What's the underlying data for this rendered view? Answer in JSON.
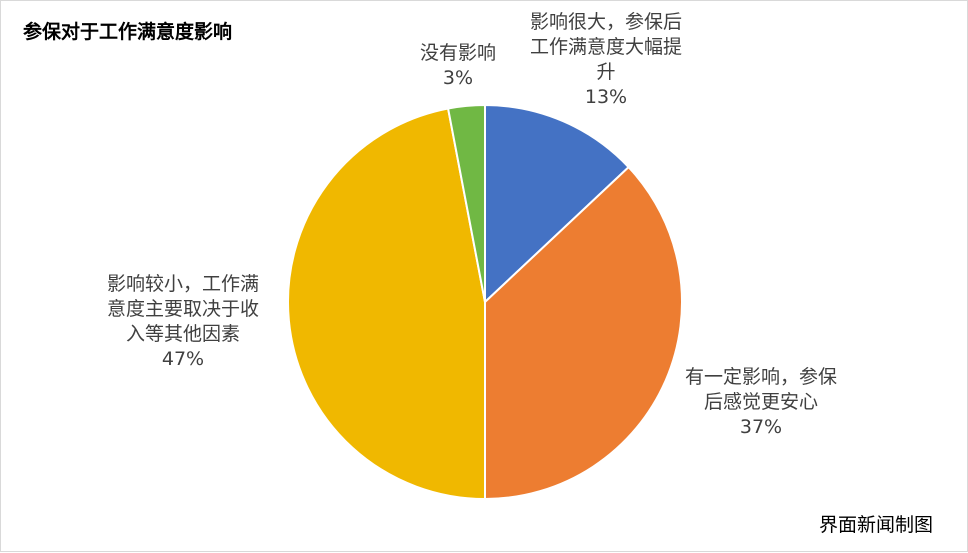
{
  "source_note": "界面新闻制图",
  "chart_data": {
    "type": "pie",
    "title": "参保对于工作满意度影响",
    "slices": [
      {
        "label_lines": [
          "影响很大，参保后",
          "工作满意度大幅提",
          "升"
        ],
        "value": 13,
        "value_label": "13%",
        "color": "#4472c4"
      },
      {
        "label_lines": [
          "有一定影响，参保",
          "后感觉更安心"
        ],
        "value": 37,
        "value_label": "37%",
        "color": "#ed7d31"
      },
      {
        "label_lines": [
          "影响较小，工作满",
          "意度主要取决于收",
          "入等其他因素"
        ],
        "value": 47,
        "value_label": "47%",
        "color": "#f0b800"
      },
      {
        "label_lines": [
          "没有影响"
        ],
        "value": 3,
        "value_label": "3%",
        "color": "#70b844"
      }
    ],
    "legend": "none"
  }
}
